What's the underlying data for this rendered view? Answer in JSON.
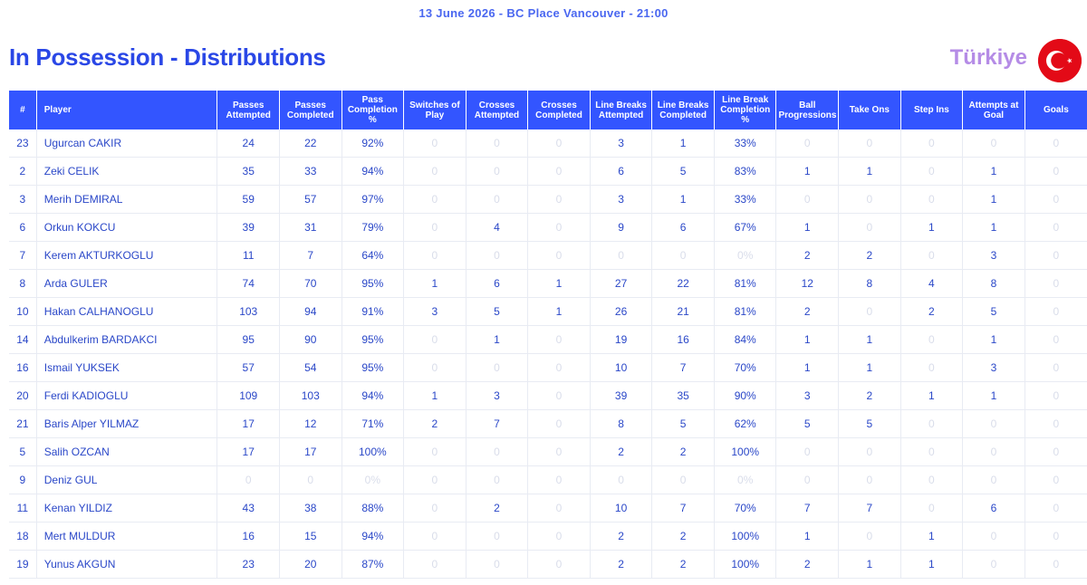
{
  "header": {
    "match_info": "13 June 2026 - BC Place Vancouver - 21:00",
    "title": "In Possession - Distributions",
    "team": "Türkiye",
    "flag_icon": "turkey-flag-icon",
    "colors": {
      "accent": "#3355ff",
      "title": "#2a47e6",
      "team_name": "#b58ce6",
      "cell_text": "#2a47c8",
      "zero_text": "#d9ddea",
      "flag_red": "#e30a17"
    }
  },
  "table": {
    "columns": [
      "#",
      "Player",
      "Passes Attempted",
      "Passes Completed",
      "Pass Completion %",
      "Switches of Play",
      "Crosses Attempted",
      "Crosses Completed",
      "Line Breaks Attempted",
      "Line Breaks Completed",
      "Line Break Completion %",
      "Ball Progressions",
      "Take Ons",
      "Step Ins",
      "Attempts at Goal",
      "Goals"
    ],
    "rows": [
      [
        "23",
        "Ugurcan CAKIR",
        "24",
        "22",
        "92%",
        "0",
        "0",
        "0",
        "3",
        "1",
        "33%",
        "0",
        "0",
        "0",
        "0",
        "0"
      ],
      [
        "2",
        "Zeki CELIK",
        "35",
        "33",
        "94%",
        "0",
        "0",
        "0",
        "6",
        "5",
        "83%",
        "1",
        "1",
        "0",
        "1",
        "0"
      ],
      [
        "3",
        "Merih DEMIRAL",
        "59",
        "57",
        "97%",
        "0",
        "0",
        "0",
        "3",
        "1",
        "33%",
        "0",
        "0",
        "0",
        "1",
        "0"
      ],
      [
        "6",
        "Orkun KOKCU",
        "39",
        "31",
        "79%",
        "0",
        "4",
        "0",
        "9",
        "6",
        "67%",
        "1",
        "0",
        "1",
        "1",
        "0"
      ],
      [
        "7",
        "Kerem AKTURKOGLU",
        "11",
        "7",
        "64%",
        "0",
        "0",
        "0",
        "0",
        "0",
        "0%",
        "2",
        "2",
        "0",
        "3",
        "0"
      ],
      [
        "8",
        "Arda GULER",
        "74",
        "70",
        "95%",
        "1",
        "6",
        "1",
        "27",
        "22",
        "81%",
        "12",
        "8",
        "4",
        "8",
        "0"
      ],
      [
        "10",
        "Hakan CALHANOGLU",
        "103",
        "94",
        "91%",
        "3",
        "5",
        "1",
        "26",
        "21",
        "81%",
        "2",
        "0",
        "2",
        "5",
        "0"
      ],
      [
        "14",
        "Abdulkerim BARDAKCI",
        "95",
        "90",
        "95%",
        "0",
        "1",
        "0",
        "19",
        "16",
        "84%",
        "1",
        "1",
        "0",
        "1",
        "0"
      ],
      [
        "16",
        "Ismail YUKSEK",
        "57",
        "54",
        "95%",
        "0",
        "0",
        "0",
        "10",
        "7",
        "70%",
        "1",
        "1",
        "0",
        "3",
        "0"
      ],
      [
        "20",
        "Ferdi KADIOGLU",
        "109",
        "103",
        "94%",
        "1",
        "3",
        "0",
        "39",
        "35",
        "90%",
        "3",
        "2",
        "1",
        "1",
        "0"
      ],
      [
        "21",
        "Baris Alper YILMAZ",
        "17",
        "12",
        "71%",
        "2",
        "7",
        "0",
        "8",
        "5",
        "62%",
        "5",
        "5",
        "0",
        "0",
        "0"
      ],
      [
        "5",
        "Salih OZCAN",
        "17",
        "17",
        "100%",
        "0",
        "0",
        "0",
        "2",
        "2",
        "100%",
        "0",
        "0",
        "0",
        "0",
        "0"
      ],
      [
        "9",
        "Deniz GUL",
        "0",
        "0",
        "0%",
        "0",
        "0",
        "0",
        "0",
        "0",
        "0%",
        "0",
        "0",
        "0",
        "0",
        "0"
      ],
      [
        "11",
        "Kenan YILDIZ",
        "43",
        "38",
        "88%",
        "0",
        "2",
        "0",
        "10",
        "7",
        "70%",
        "7",
        "7",
        "0",
        "6",
        "0"
      ],
      [
        "18",
        "Mert MULDUR",
        "16",
        "15",
        "94%",
        "0",
        "0",
        "0",
        "2",
        "2",
        "100%",
        "1",
        "0",
        "1",
        "0",
        "0"
      ],
      [
        "19",
        "Yunus AKGUN",
        "23",
        "20",
        "87%",
        "0",
        "0",
        "0",
        "2",
        "2",
        "100%",
        "2",
        "1",
        "1",
        "0",
        "0"
      ]
    ]
  }
}
